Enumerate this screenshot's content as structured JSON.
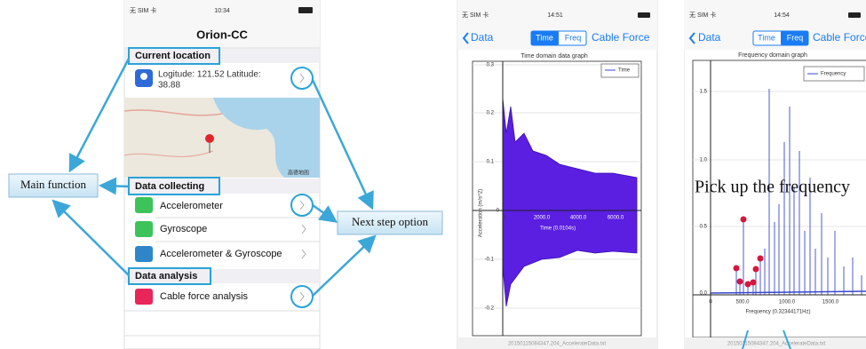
{
  "annotations": {
    "main_function": "Main function",
    "next_step": "Next step option",
    "pick_up": "Pick up the frequency"
  },
  "phone1": {
    "status": {
      "carrier": "无 SIM 卡",
      "time": "10:34"
    },
    "title": "Orion-CC",
    "sections": [
      {
        "header": "Current location",
        "rows": [
          "Logitude: 121.52 Latitude:",
          "38.88"
        ]
      },
      {
        "header": "Data collecting",
        "rows": [
          "Accelerometer",
          "Gyroscope",
          "Accelerometer & Gyroscope"
        ]
      },
      {
        "header": "Data analysis",
        "rows": [
          "Cable force analysis"
        ]
      }
    ],
    "map_label": "高德地图"
  },
  "phone2": {
    "status": {
      "carrier": "无 SIM 卡",
      "time": "14:51"
    },
    "nav": {
      "back": "Data",
      "segments": [
        "Time",
        "Freq"
      ],
      "right": "Cable Force"
    },
    "graph": {
      "title": "Time domain data graph",
      "legend": "Time",
      "ylabel": "Acceleration (m/s^2)",
      "xlabel": "Time (0.0104s)",
      "yticks": [
        "0.3",
        "0.2",
        "0.1",
        "0",
        "-0.1",
        "-0.2"
      ],
      "xticks": [
        "0",
        "2000.0",
        "4000.0",
        "6000.0"
      ]
    },
    "footer": "20150115084347.204_AccelerateData.txt"
  },
  "phone3": {
    "status": {
      "carrier": "无 SIM 卡",
      "time": "14:54"
    },
    "nav": {
      "back": "Data",
      "segments": [
        "Time",
        "Freq"
      ],
      "right": "Cable Force"
    },
    "graph": {
      "title": "Frequency domain graph",
      "legend": "Frequency",
      "xlabel": "Frequency (0.32344171Hz)",
      "yticks": [
        "1.5",
        "1.0",
        "0.5",
        "0.0"
      ],
      "xticks": [
        "0",
        "500.0",
        "1000.0",
        "1500.0"
      ]
    },
    "footer": "20150115084347.204_AccelerateData.txt"
  }
}
